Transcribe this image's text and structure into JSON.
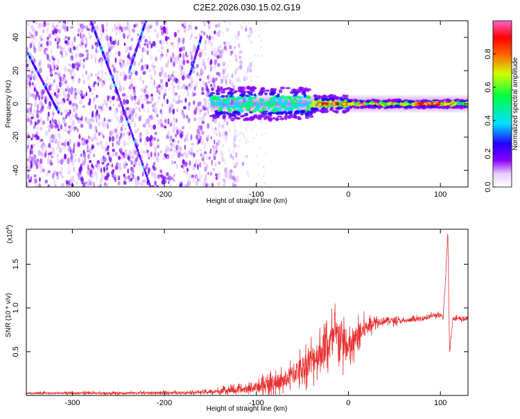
{
  "title": "C2E2.2026.030.15.02.G19",
  "colors": {
    "spectrum": [
      "#ffffff",
      "#e8ccff",
      "#8a00ff",
      "#2200ff",
      "#00e0ff",
      "#00ff40",
      "#d0ff00",
      "#ff6000",
      "#ff0000",
      "#ff66cc"
    ],
    "snr_line": "#e83030",
    "frame": "#000000"
  },
  "chart_data": [
    {
      "type": "heatmap",
      "name": "spectrogram",
      "xlabel": "Height of straight line (km)",
      "ylabel": "Frequency (Hz)",
      "xlim": [
        -350,
        130
      ],
      "ylim": [
        -50,
        50
      ],
      "xticks": [
        -300,
        -200,
        -100,
        0,
        100
      ],
      "xtick_labels": [
        "-300",
        "-200",
        "-100",
        "0",
        "100"
      ],
      "yticks": [
        -40,
        -20,
        0,
        20,
        40
      ],
      "ytick_labels": [
        "-40",
        "-20",
        "0",
        "20",
        "40"
      ],
      "noise_region_x": [
        -350,
        -120
      ],
      "tone_frequency": 0,
      "tone_start_x": -150,
      "streaks": [
        {
          "x1": -280,
          "y1": 50,
          "x2": -258,
          "y2": 18
        },
        {
          "x1": -258,
          "y1": 18,
          "x2": -215,
          "y2": -50
        },
        {
          "x1": -348,
          "y1": 30,
          "x2": -315,
          "y2": -5
        },
        {
          "x1": -220,
          "y1": 50,
          "x2": -238,
          "y2": 20
        },
        {
          "x1": -160,
          "y1": 40,
          "x2": -172,
          "y2": 18
        }
      ],
      "colorbar": {
        "label": "Normalized spectral amplitude",
        "range": [
          0.0,
          1.0
        ],
        "ticks": [
          0.0,
          0.2,
          0.4,
          0.6,
          0.8
        ],
        "tick_labels": [
          "0.0",
          "0.2",
          "0.4",
          "0.6",
          "0.8"
        ]
      }
    },
    {
      "type": "line",
      "name": "snr",
      "xlabel": "Height of straight line (km)",
      "ylabel": "SNR (10 * v/v)",
      "y_multiplier_label": "(x10",
      "y_multiplier_exp": "4",
      "xlim": [
        -350,
        130
      ],
      "ylim": [
        0,
        19000
      ],
      "xticks": [
        -300,
        -200,
        -100,
        0,
        100
      ],
      "xtick_labels": [
        "-300",
        "-200",
        "-100",
        "0",
        "100"
      ],
      "yticks": [
        5000,
        10000,
        15000
      ],
      "ytick_labels": [
        "0.5",
        "1.0",
        "1.5"
      ],
      "profile": [
        {
          "x": -350,
          "y": 250
        },
        {
          "x": -200,
          "y": 300
        },
        {
          "x": -150,
          "y": 400
        },
        {
          "x": -110,
          "y": 700
        },
        {
          "x": -90,
          "y": 1200
        },
        {
          "x": -70,
          "y": 1700
        },
        {
          "x": -50,
          "y": 3200
        },
        {
          "x": -35,
          "y": 4500
        },
        {
          "x": -20,
          "y": 6000
        },
        {
          "x": -10,
          "y": 7000
        },
        {
          "x": 0,
          "y": 5000
        },
        {
          "x": 10,
          "y": 6800
        },
        {
          "x": 25,
          "y": 8300
        },
        {
          "x": 40,
          "y": 8600
        },
        {
          "x": 60,
          "y": 8500
        },
        {
          "x": 80,
          "y": 8800
        },
        {
          "x": 95,
          "y": 9200
        },
        {
          "x": 103,
          "y": 9000
        },
        {
          "x": 106,
          "y": 14000
        },
        {
          "x": 108,
          "y": 19000
        },
        {
          "x": 110,
          "y": 5000
        },
        {
          "x": 114,
          "y": 9000
        },
        {
          "x": 120,
          "y": 8700
        },
        {
          "x": 130,
          "y": 8800
        }
      ],
      "noise_amplitude": [
        {
          "x": -350,
          "y": 150
        },
        {
          "x": -160,
          "y": 250
        },
        {
          "x": -110,
          "y": 700
        },
        {
          "x": -60,
          "y": 1800
        },
        {
          "x": -30,
          "y": 3000
        },
        {
          "x": -10,
          "y": 3500
        },
        {
          "x": 5,
          "y": 2500
        },
        {
          "x": 30,
          "y": 800
        },
        {
          "x": 60,
          "y": 400
        },
        {
          "x": 130,
          "y": 400
        }
      ]
    }
  ]
}
